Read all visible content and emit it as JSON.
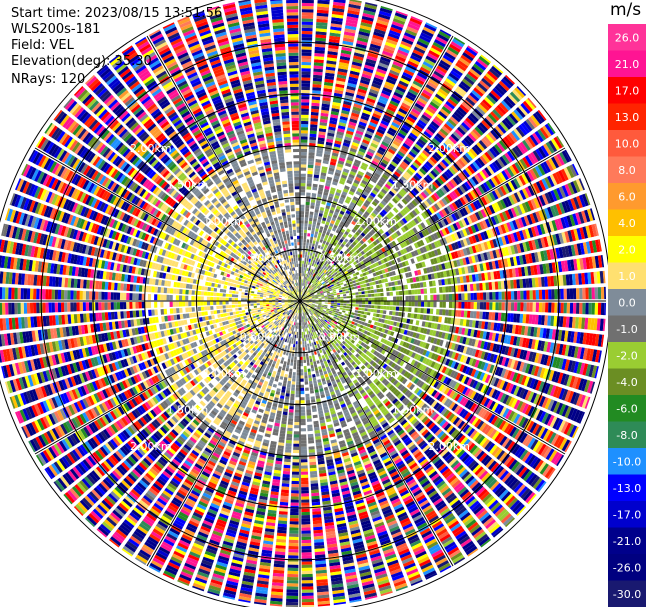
{
  "header": {
    "start_time": "Start time: 2023/08/15 13:51:56",
    "instrument": "WLS200s-181",
    "field": "Field: VEL",
    "elevation": "Elevation(deg): 35.30",
    "nrays": "NRays: 120"
  },
  "chart_data": {
    "type": "heatmap",
    "subtype": "ppi-polar",
    "n_rays": 120,
    "range_rings_km": [
      0.5,
      1.0,
      1.5,
      2.0,
      2.5,
      3.0
    ],
    "ring_labels": [
      "0.50km",
      "0.50km",
      "0.50km",
      "0.50km",
      "1.00km",
      "1.00km",
      "1.00km",
      "1.00km",
      "1.50km",
      "1.50km",
      "1.50km",
      "1.50km",
      "2.00km",
      "2.00km",
      "2.00km",
      "2.00km"
    ],
    "colorbar": {
      "unit": "m/s",
      "ticks": [
        "26.0",
        "21.0",
        "17.0",
        "13.0",
        "10.0",
        "8.0",
        "6.0",
        "4.0",
        "2.0",
        "1.0",
        "0.0",
        "-1.0",
        "-2.0",
        "-4.0",
        "-6.0",
        "-8.0",
        "-10.0",
        "-13.0",
        "-17.0",
        "-21.0",
        "-26.0",
        "-30.0"
      ],
      "bins": [
        {
          "low": 26,
          "color": "#ff3399"
        },
        {
          "low": 21,
          "color": "#ff1493"
        },
        {
          "low": 17,
          "color": "#ff0000"
        },
        {
          "low": 13,
          "color": "#ff2400"
        },
        {
          "low": 10,
          "color": "#ff5a3c"
        },
        {
          "low": 8,
          "color": "#ff7a5a"
        },
        {
          "low": 6,
          "color": "#ff9a2e"
        },
        {
          "low": 4,
          "color": "#ffc000"
        },
        {
          "low": 2,
          "color": "#ffff00"
        },
        {
          "low": 1,
          "color": "#ffe070"
        },
        {
          "low": 0,
          "color": "#7f8c99"
        },
        {
          "low": -1,
          "color": "#707070"
        },
        {
          "low": -2,
          "color": "#9acd32"
        },
        {
          "low": -4,
          "color": "#6b8e23"
        },
        {
          "low": -6,
          "color": "#228b22"
        },
        {
          "low": -8,
          "color": "#2e8b57"
        },
        {
          "low": -10,
          "color": "#1e90ff"
        },
        {
          "low": -13,
          "color": "#0000ff"
        },
        {
          "low": -17,
          "color": "#0000cd"
        },
        {
          "low": -21,
          "color": "#00008b"
        },
        {
          "low": -26,
          "color": "#000080"
        },
        {
          "low": -30,
          "color": "#191970"
        }
      ]
    },
    "notes": "Near-field (<~1.5 km) dominated by -2..2 m/s (grey/yellow/olive); beyond ~1.5 km values are noisy across the full -30..26 m/s range."
  }
}
